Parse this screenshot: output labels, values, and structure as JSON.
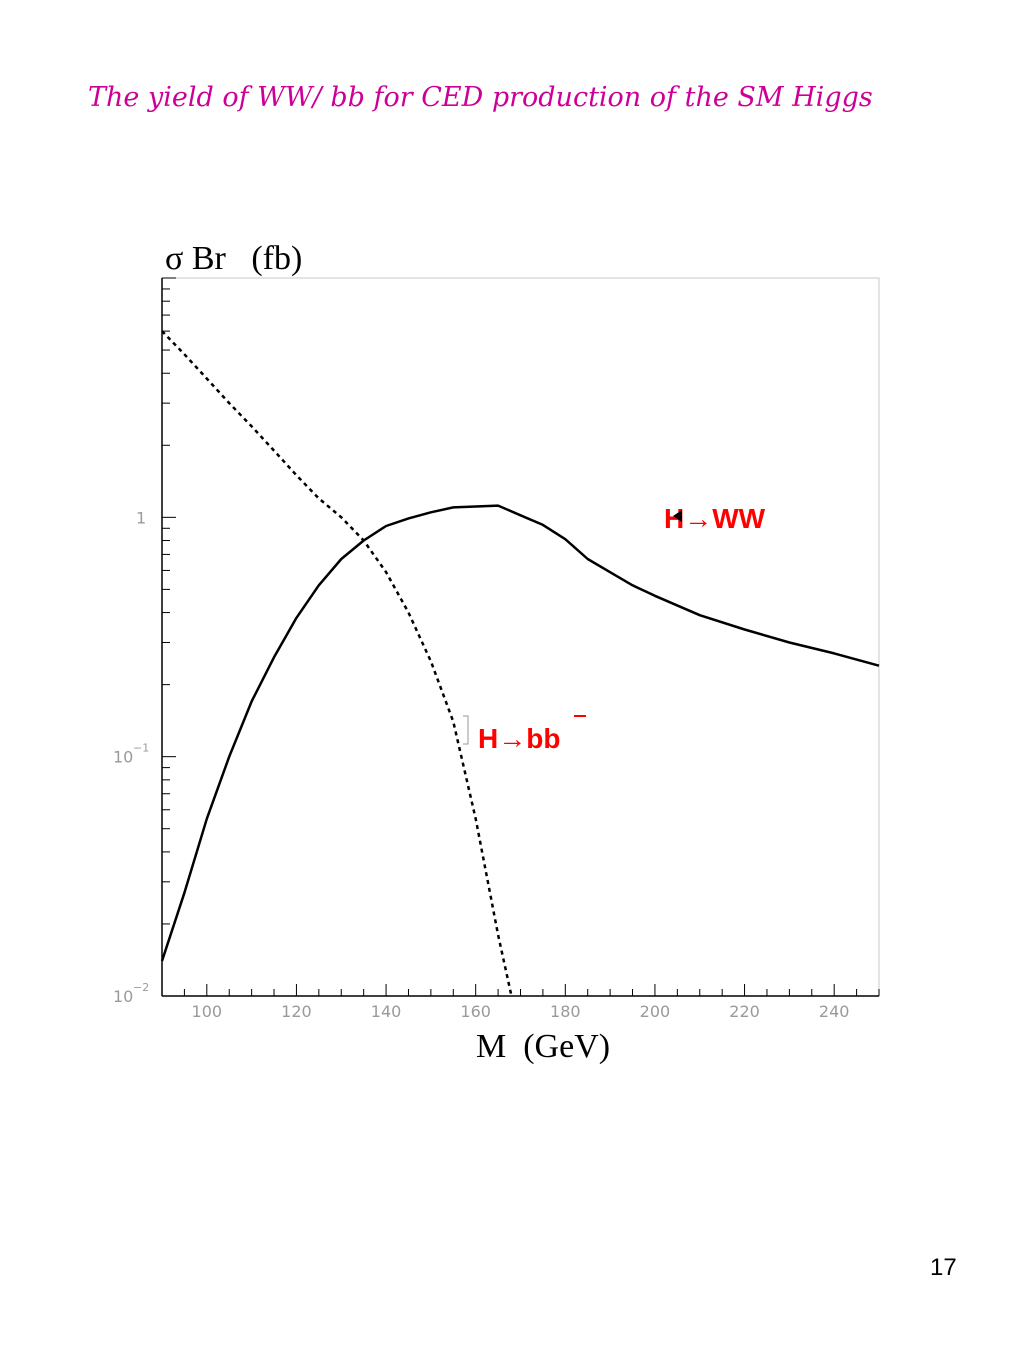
{
  "slide": {
    "title": "The yield of WW/ bb for CED production of the SM Higgs",
    "page_number": "17"
  },
  "chart_data": {
    "type": "line",
    "title": "The yield of WW/ bb for CED production of the SM Higgs",
    "ylabel": "σ Br   (fb)",
    "xlabel": "M  (GeV)",
    "xlim": [
      90,
      250
    ],
    "ylim": [
      0.01,
      10
    ],
    "yscale": "log",
    "grid": false,
    "x_ticks": [
      100,
      120,
      140,
      160,
      180,
      200,
      220,
      240
    ],
    "y_ticks": [
      {
        "value": 1,
        "base": "1",
        "exp": ""
      },
      {
        "value": 0.1,
        "base": "10",
        "exp": "−1"
      },
      {
        "value": 0.01,
        "base": "10",
        "exp": "−2"
      }
    ],
    "series": [
      {
        "name": "H→WW",
        "style": "solid",
        "color": "#000000",
        "x": [
          90,
          95,
          100,
          105,
          110,
          115,
          120,
          125,
          130,
          135,
          140,
          145,
          150,
          155,
          160,
          165,
          170,
          175,
          180,
          185,
          190,
          195,
          200,
          210,
          220,
          230,
          240,
          250
        ],
        "y": [
          0.014,
          0.027,
          0.055,
          0.1,
          0.17,
          0.26,
          0.38,
          0.52,
          0.67,
          0.8,
          0.92,
          0.99,
          1.05,
          1.1,
          1.11,
          1.12,
          1.02,
          0.93,
          0.81,
          0.67,
          0.59,
          0.52,
          0.47,
          0.39,
          0.34,
          0.3,
          0.27,
          0.24
        ]
      },
      {
        "name": "H→bb",
        "style": "dashed",
        "color": "#000000",
        "x": [
          90,
          95,
          100,
          105,
          110,
          115,
          120,
          125,
          130,
          135,
          140,
          145,
          150,
          155,
          160,
          165,
          168
        ],
        "y": [
          6.0,
          4.8,
          3.8,
          3.0,
          2.4,
          1.9,
          1.5,
          1.2,
          1.0,
          0.8,
          0.59,
          0.4,
          0.25,
          0.14,
          0.055,
          0.018,
          0.01
        ]
      }
    ],
    "labels": [
      {
        "series": "H→WW",
        "text": "H→WW"
      },
      {
        "series": "H→bb",
        "text": "H→bb"
      }
    ]
  }
}
